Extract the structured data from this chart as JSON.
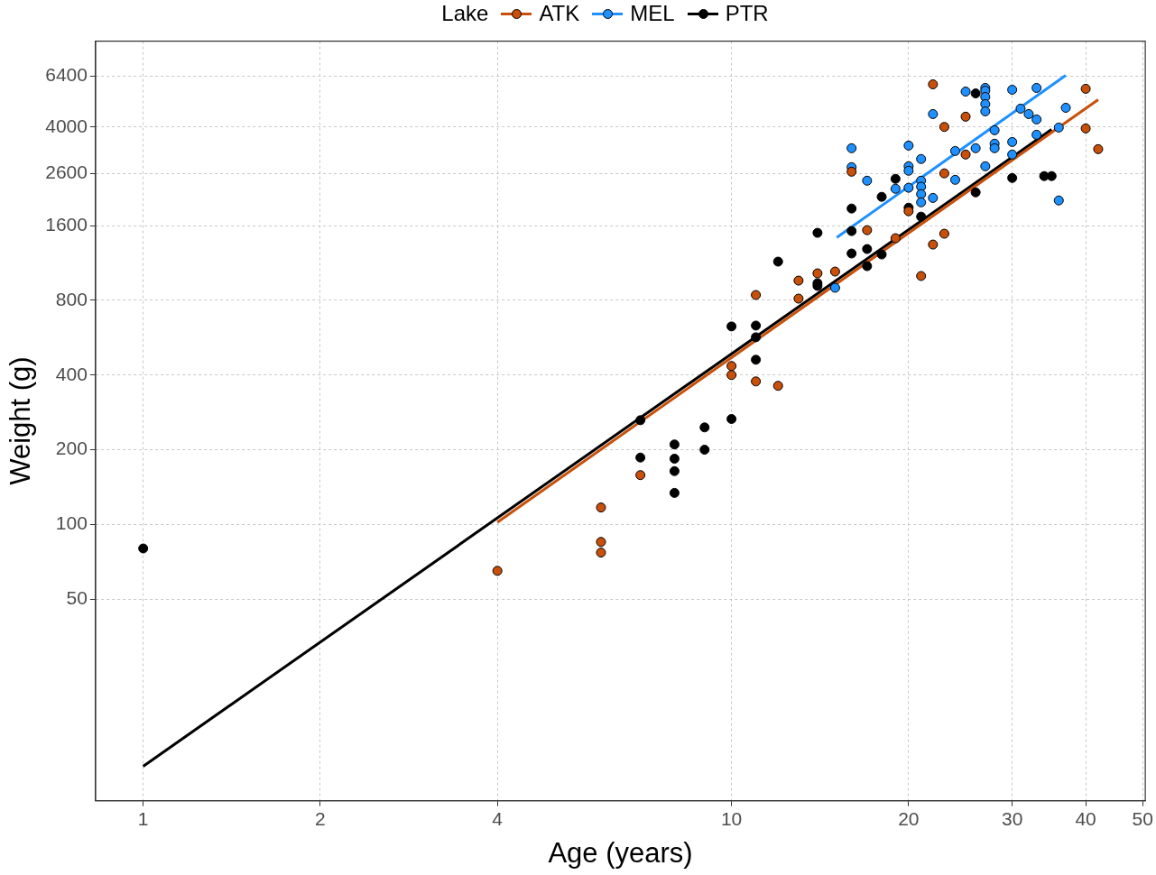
{
  "chart_data": {
    "type": "scatter",
    "xlabel": "Age (years)",
    "ylabel": "Weight (g)",
    "legend_title": "Lake",
    "legend": "top",
    "grid": true,
    "log": "xy",
    "xlim": [
      0.83,
      50.5
    ],
    "xticks": [
      1,
      2,
      4,
      10,
      20,
      30,
      40,
      50
    ],
    "ylim": [
      7.7,
      8870
    ],
    "yticks": [
      50,
      100,
      200,
      400,
      800,
      1600,
      2600,
      4000,
      6400
    ],
    "series": [
      {
        "name": "ATK",
        "marker": "circle",
        "color": "#c8500a",
        "x": [
          4,
          6,
          6,
          6,
          7,
          10,
          10,
          11,
          11,
          12,
          13,
          13,
          14,
          15,
          16,
          17,
          19,
          20,
          21,
          22,
          22,
          23,
          23,
          23,
          25,
          25,
          40,
          40,
          42
        ],
        "values": [
          65,
          117,
          85,
          77,
          158,
          435,
          400,
          841,
          377,
          362,
          961,
          813,
          1028,
          1045,
          2640,
          1535,
          1424,
          1830,
          1003,
          5940,
          1343,
          4000,
          2600,
          1485,
          4400,
          3096,
          5700,
          3945,
          3255
        ]
      },
      {
        "name": "MEL",
        "marker": "circle",
        "color": "#1e90ff",
        "x": [
          15,
          16,
          16,
          17,
          19,
          20,
          20,
          20,
          20,
          21,
          21,
          21,
          21,
          21,
          22,
          22,
          24,
          24,
          25,
          26,
          27,
          27,
          27,
          27,
          27,
          27,
          28,
          28,
          28,
          30,
          30,
          30,
          31,
          32,
          33,
          33,
          33,
          36,
          36,
          37
        ],
        "values": [
          899,
          3283,
          2754,
          2429,
          2254,
          3365,
          2777,
          2664,
          2275,
          2970,
          2429,
          2296,
          2144,
          1987,
          2070,
          4508,
          3200,
          2449,
          5554,
          3283,
          5746,
          5600,
          5284,
          4943,
          4622,
          2777,
          3879,
          3423,
          3283,
          5650,
          3479,
          3096,
          4740,
          4508,
          5746,
          4289,
          3720,
          3978,
          2022,
          4779
        ]
      },
      {
        "name": "PTR",
        "marker": "circle",
        "color": "#000000",
        "x": [
          1,
          7,
          7,
          8,
          8,
          8,
          8,
          9,
          9,
          10,
          10,
          11,
          11,
          11,
          12,
          14,
          14,
          14,
          16,
          16,
          16,
          17,
          17,
          18,
          18,
          19,
          20,
          21,
          26,
          26,
          30,
          34,
          35
        ],
        "values": [
          80,
          263,
          186,
          210,
          184,
          164,
          134,
          246,
          200,
          628,
          266,
          633,
          568,
          461,
          1146,
          1497,
          938,
          915,
          1876,
          1522,
          1236,
          1288,
          1099,
          2091,
          1225,
          2471,
          1891,
          1740,
          5460,
          2179,
          2491,
          2535,
          2535
        ]
      },
      {
        "type": "line",
        "marker": "none",
        "color": "#c8500a",
        "x": [
          4,
          42
        ],
        "values": [
          102,
          5150
        ]
      },
      {
        "type": "line",
        "marker": "none",
        "color": "#1e90ff",
        "x": [
          15.1,
          37
        ],
        "values": [
          1435,
          6455
        ]
      },
      {
        "type": "line",
        "marker": "none",
        "color": "#000000",
        "x": [
          1,
          35
        ],
        "values": [
          10.6,
          3908
        ]
      }
    ]
  }
}
